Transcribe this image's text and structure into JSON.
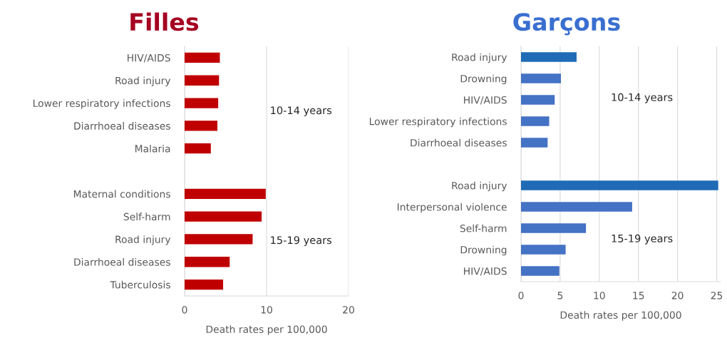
{
  "chart_data": [
    {
      "type": "bar",
      "orientation": "horizontal",
      "title": "Filles",
      "xlabel": "Death rates per 100,000",
      "categories": [
        "HIV/AIDS",
        "Road injury",
        "Lower respiratory infections",
        "Diarrhoeal diseases",
        "Malaria",
        null,
        "Maternal conditions",
        "Self-harm",
        "Road injury",
        "Diarrhoeal diseases",
        "Tuberculosis"
      ],
      "values": [
        4.3,
        4.2,
        4.1,
        4.0,
        3.2,
        null,
        9.9,
        9.4,
        8.3,
        5.5,
        4.7
      ],
      "colors": [
        "#c00000",
        "#c00000",
        "#c00000",
        "#c00000",
        "#c00000",
        "#c00000",
        "#c00000",
        "#c00000",
        "#c00000",
        "#c00000",
        "#c00000"
      ],
      "xlim": [
        0,
        20
      ],
      "xticks": [
        0,
        10,
        20
      ],
      "grid": "x",
      "annotations": [
        "10-14 years",
        "15-19 years"
      ]
    },
    {
      "type": "bar",
      "orientation": "horizontal",
      "title": "Garçons",
      "xlabel": "Death rates per 100,000",
      "categories": [
        "Road injury",
        "Drowning",
        "HIV/AIDS",
        "Lower respiratory infections",
        "Diarrhoeal diseases",
        null,
        "Road injury",
        "Interpersonal violence",
        "Self-harm",
        "Drowning",
        "HIV/AIDS"
      ],
      "values": [
        7.1,
        5.1,
        4.3,
        3.6,
        3.4,
        null,
        25.2,
        14.2,
        8.3,
        5.7,
        4.9
      ],
      "colors": [
        "#1f6bb5",
        "#4472c4",
        "#4472c4",
        "#4472c4",
        "#4472c4",
        "#4472c4",
        "#1f6bb5",
        "#4472c4",
        "#4472c4",
        "#4472c4",
        "#4472c4"
      ],
      "xlim": [
        0,
        25.5
      ],
      "xticks": [
        0,
        5,
        10,
        15,
        20,
        25
      ],
      "grid": "x",
      "annotations": [
        "10-14 years",
        "15-19 years"
      ]
    }
  ]
}
